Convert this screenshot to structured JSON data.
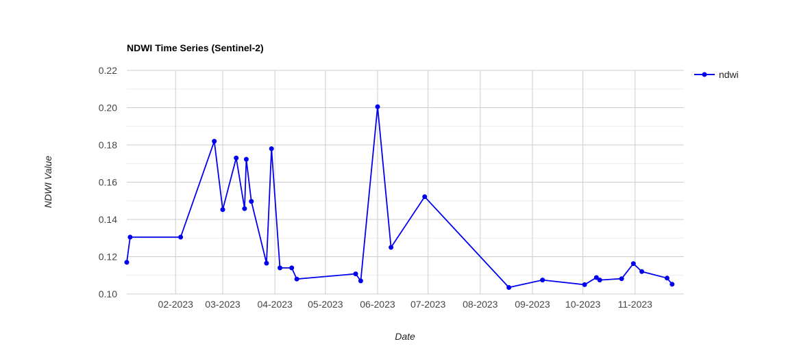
{
  "chart_data": {
    "type": "line",
    "title": "NDWI Time Series (Sentinel-2)",
    "xlabel": "Date",
    "ylabel": "NDWI Value",
    "x_range": [
      "2023-01-03",
      "2023-11-30"
    ],
    "ylim": [
      0.1,
      0.22
    ],
    "y_ticks": [
      "0.10",
      "0.12",
      "0.14",
      "0.16",
      "0.18",
      "0.20",
      "0.22"
    ],
    "x_ticks": [
      {
        "date": "2023-02-01",
        "label": "02-2023"
      },
      {
        "date": "2023-03-01",
        "label": "03-2023"
      },
      {
        "date": "2023-04-01",
        "label": "04-2023"
      },
      {
        "date": "2023-05-01",
        "label": "05-2023"
      },
      {
        "date": "2023-06-01",
        "label": "06-2023"
      },
      {
        "date": "2023-07-01",
        "label": "07-2023"
      },
      {
        "date": "2023-08-01",
        "label": "08-2023"
      },
      {
        "date": "2023-09-01",
        "label": "09-2023"
      },
      {
        "date": "2023-10-01",
        "label": "10-2023"
      },
      {
        "date": "2023-11-01",
        "label": "11-2023"
      }
    ],
    "grid": true,
    "legend": {
      "position": "top-right"
    },
    "series": [
      {
        "name": "ndwi",
        "color": "#0000ee",
        "x": [
          "2023-01-03",
          "2023-01-05",
          "2023-02-04",
          "2023-02-24",
          "2023-03-01",
          "2023-03-09",
          "2023-03-14",
          "2023-03-15",
          "2023-03-18",
          "2023-03-27",
          "2023-03-30",
          "2023-04-04",
          "2023-04-11",
          "2023-04-14",
          "2023-05-19",
          "2023-05-22",
          "2023-06-01",
          "2023-06-09",
          "2023-06-29",
          "2023-08-18",
          "2023-09-07",
          "2023-10-02",
          "2023-10-09",
          "2023-10-11",
          "2023-10-24",
          "2023-10-31",
          "2023-11-05",
          "2023-11-20",
          "2023-11-23"
        ],
        "y": [
          0.117,
          0.1305,
          0.1305,
          0.182,
          0.1453,
          0.173,
          0.1458,
          0.1723,
          0.1497,
          0.1165,
          0.178,
          0.114,
          0.114,
          0.108,
          0.1108,
          0.107,
          0.2005,
          0.125,
          0.1522,
          0.1035,
          0.1075,
          0.105,
          0.1088,
          0.1075,
          0.1082,
          0.1163,
          0.112,
          0.1085,
          0.1052
        ]
      }
    ]
  }
}
